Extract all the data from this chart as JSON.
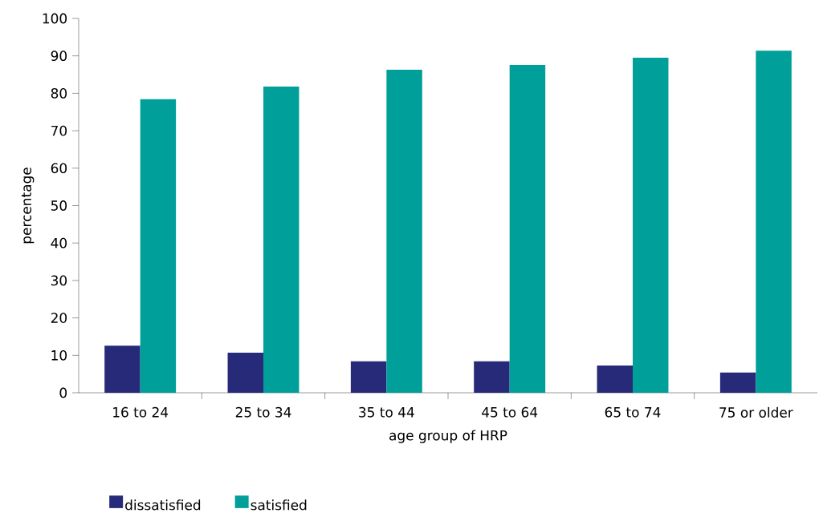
{
  "chart_data": {
    "type": "bar",
    "xlabel": "age group of HRP",
    "ylabel": "percentage",
    "categories": [
      "16 to 24",
      "25 to 34",
      "35 to 44",
      "45 to 64",
      "65 to 74",
      "75 or older"
    ],
    "series": [
      {
        "name": "dissatisfied",
        "color": "#262a78",
        "values": [
          12.6,
          10.7,
          8.4,
          8.4,
          7.3,
          5.4
        ]
      },
      {
        "name": "satisfied",
        "color": "#009f9a",
        "values": [
          78.4,
          81.8,
          86.3,
          87.6,
          89.5,
          91.4
        ]
      }
    ],
    "ylim": [
      0,
      100
    ],
    "yticks": [
      0,
      10,
      20,
      30,
      40,
      50,
      60,
      70,
      80,
      90,
      100
    ],
    "grid": false,
    "legend": "bottom"
  }
}
